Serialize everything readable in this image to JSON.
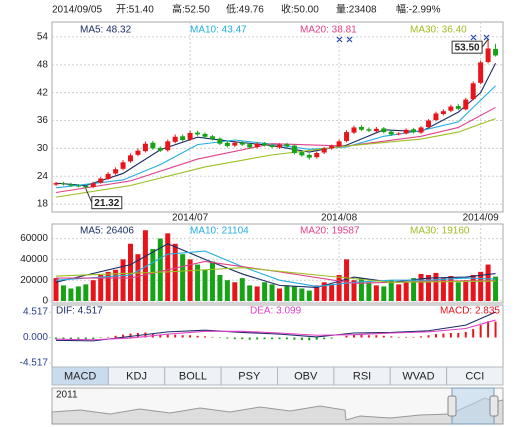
{
  "header": {
    "date": "2014/09/05",
    "open": "开:51.40",
    "high": "高:52.50",
    "low": "低:49.76",
    "close": "收:50.00",
    "volume": "量:23408",
    "change": "幅:-2.99%"
  },
  "chart_data": [
    {
      "type": "candlestick",
      "categories": [
        null,
        null,
        null,
        null,
        null,
        null,
        null,
        null,
        null,
        null,
        null,
        null,
        null,
        null,
        null,
        null,
        null,
        null,
        null,
        null,
        null,
        null,
        null,
        null,
        null,
        null,
        null,
        null,
        null,
        null,
        null,
        null,
        null,
        null,
        null,
        null,
        null,
        null,
        null,
        null,
        null,
        null,
        null,
        null,
        null,
        null,
        null,
        null,
        null,
        null,
        null,
        null,
        null,
        null,
        null,
        null,
        null,
        null,
        null,
        null
      ],
      "open": [
        22.2,
        22.5,
        22.3,
        22.0,
        21.9,
        21.7,
        22.6,
        23.4,
        24.6,
        25.6,
        27.2,
        28.6,
        29.4,
        31.2,
        30.1,
        29.6,
        31.4,
        32.6,
        31.9,
        33.4,
        33.1,
        32.6,
        32.1,
        31.2,
        30.6,
        31.3,
        30.9,
        30.3,
        31.1,
        30.7,
        30.2,
        30.9,
        30.6,
        29.2,
        28.6,
        28.1,
        29.1,
        30.0,
        30.4,
        31.6,
        33.4,
        34.6,
        34.1,
        33.7,
        34.3,
        33.6,
        33.1,
        33.2,
        34.1,
        33.4,
        34.6,
        36.1,
        37.4,
        38.1,
        39.1,
        38.4,
        40.6,
        44.1,
        48.6,
        51.4
      ],
      "high": [
        22.8,
        22.8,
        22.6,
        22.3,
        22.1,
        22.8,
        23.8,
        24.9,
        25.9,
        27.5,
        28.9,
        30,
        31.5,
        31.6,
        30.4,
        31.9,
        33,
        33,
        33.8,
        33.8,
        33.4,
        32.9,
        32.4,
        31.6,
        31.6,
        31.6,
        31.2,
        31.3,
        31.4,
        31,
        31.1,
        31.2,
        30.8,
        29.5,
        28.9,
        29.3,
        30.3,
        30.8,
        31.9,
        33.9,
        34.9,
        35,
        34.5,
        34.6,
        34.6,
        33.9,
        33.5,
        34.3,
        34.4,
        34.8,
        36.3,
        37.9,
        38.4,
        39.4,
        39.5,
        40.9,
        44.4,
        48.9,
        53.5,
        52.5
      ],
      "low": [
        21.9,
        22.0,
        21.7,
        21.6,
        21.32,
        21.5,
        22.4,
        23.2,
        24.3,
        25.3,
        26.9,
        28.3,
        29.1,
        29.7,
        29.2,
        29.3,
        31.1,
        31.5,
        31.6,
        32.7,
        32.2,
        31.7,
        30.7,
        30.2,
        30.3,
        30.5,
        29.9,
        30,
        30.4,
        30,
        29.9,
        30.2,
        28.7,
        28.2,
        27.6,
        27.8,
        28.8,
        29.7,
        30.2,
        31.3,
        33.1,
        33.7,
        33.5,
        33.4,
        33.2,
        32.7,
        32.8,
        33,
        33.2,
        33.1,
        34.3,
        35.8,
        37.1,
        37.8,
        38.2,
        38.2,
        40.3,
        43.8,
        48.3,
        49.76
      ],
      "close": [
        22.5,
        22.3,
        22.0,
        21.8,
        21.6,
        22.5,
        23.5,
        24.5,
        25.5,
        27,
        28.5,
        29.5,
        31,
        30,
        29.5,
        31.5,
        32.5,
        31.8,
        33.3,
        33,
        32.5,
        32,
        31,
        30.5,
        31.2,
        30.8,
        30.2,
        31,
        30.6,
        30.3,
        30.8,
        30.5,
        29,
        28.5,
        28,
        29,
        30,
        30.5,
        31.5,
        33.5,
        34.5,
        34,
        33.8,
        34.2,
        33.5,
        33,
        33.2,
        34,
        33.5,
        34.5,
        36,
        37.5,
        38,
        39,
        38.5,
        40.5,
        44,
        48.5,
        51.5,
        50
      ],
      "up_color": "#e8141b",
      "down_color": "#16a316",
      "series": [
        {
          "name": "MA5: 48.32",
          "color": "#1c2d66",
          "x": [
            0,
            4,
            9,
            14,
            19,
            24,
            29,
            34,
            39,
            44,
            49,
            54,
            57,
            59
          ],
          "values": [
            22.5,
            22,
            24.6,
            29.7,
            32.4,
            31.4,
            30.6,
            29.2,
            30.7,
            34,
            33.6,
            37.8,
            42,
            48.32
          ]
        },
        {
          "name": "MA10: 43.47",
          "color": "#22aee0",
          "x": [
            0,
            9,
            14,
            19,
            24,
            29,
            34,
            39,
            44,
            49,
            54,
            59
          ],
          "values": [
            21.5,
            23.2,
            26.5,
            30.8,
            31.8,
            30.9,
            29.8,
            30.3,
            32.6,
            33.8,
            35.7,
            43.47
          ]
        },
        {
          "name": "MA20: 38.81",
          "color": "#e0408a",
          "x": [
            0,
            10,
            19,
            29,
            39,
            49,
            54,
            59
          ],
          "values": [
            20.5,
            23,
            27.7,
            31,
            30.5,
            32.6,
            34.5,
            38.81
          ]
        },
        {
          "name": "MA30: 36.40",
          "color": "#9cbf20",
          "x": [
            0,
            10,
            20,
            29,
            39,
            49,
            54,
            59
          ],
          "values": [
            19.5,
            22,
            26,
            28.6,
            30.5,
            32,
            33.5,
            36.4
          ]
        }
      ],
      "annotations": [
        {
          "text": "53.50",
          "x": 58,
          "y": 53.5
        },
        {
          "text": "21.32",
          "x": 4,
          "y": 21.32
        }
      ],
      "ylim": [
        16.3,
        57.2
      ],
      "yticks": [
        18,
        24,
        30,
        36,
        42,
        48,
        54
      ],
      "xticks": [
        {
          "value": 18,
          "label": "2014/07"
        },
        {
          "value": 38,
          "label": "2014/08"
        },
        {
          "value": 57,
          "label": "2014/09"
        }
      ],
      "grid": true
    },
    {
      "type": "volume",
      "values": [
        22000,
        15000,
        12000,
        14000,
        16000,
        20000,
        25000,
        28000,
        30000,
        40000,
        55000,
        45000,
        68000,
        50000,
        60000,
        65000,
        55000,
        45000,
        40000,
        35000,
        30000,
        38000,
        25000,
        20000,
        18000,
        22000,
        15000,
        14000,
        18000,
        16000,
        12000,
        15000,
        14000,
        12000,
        10000,
        15000,
        18000,
        16000,
        25000,
        40000,
        20000,
        22000,
        18000,
        15000,
        14000,
        20000,
        16000,
        18000,
        22000,
        26000,
        25000,
        27000,
        22000,
        24000,
        18000,
        20000,
        25000,
        28000,
        35000,
        23408
      ],
      "series": [
        {
          "name": "MA5: 26406",
          "color": "#1c2d66",
          "x": [
            0,
            10,
            15,
            20,
            25,
            30,
            35,
            40,
            45,
            50,
            55,
            59
          ],
          "values": [
            18000,
            35000,
            55000,
            40000,
            26000,
            15000,
            13000,
            23000,
            18000,
            22000,
            23000,
            26406
          ]
        },
        {
          "name": "MA10: 21104",
          "color": "#22aee0",
          "x": [
            0,
            10,
            15,
            20,
            25,
            30,
            35,
            40,
            45,
            50,
            55,
            59
          ],
          "values": [
            20000,
            25000,
            45000,
            48000,
            33000,
            20000,
            14000,
            18000,
            20000,
            20000,
            22000,
            21104
          ]
        },
        {
          "name": "MA20: 19587",
          "color": "#e0408a",
          "x": [
            0,
            10,
            20,
            30,
            40,
            50,
            59
          ],
          "values": [
            22000,
            22000,
            38000,
            28000,
            17000,
            19000,
            19587
          ]
        },
        {
          "name": "MA30: 19160",
          "color": "#9cbf20",
          "x": [
            0,
            15,
            25,
            35,
            45,
            59
          ],
          "values": [
            24000,
            28000,
            32000,
            25000,
            18000,
            19160
          ]
        }
      ],
      "ylim": [
        0,
        74000
      ],
      "yticks": [
        0,
        20000,
        40000,
        60000
      ],
      "grid": true
    },
    {
      "type": "macd",
      "name": "MACD: 2.835",
      "values": [
        -0.3,
        -0.3,
        -0.35,
        -0.4,
        -0.4,
        -0.3,
        -0.1,
        0.1,
        0.3,
        0.5,
        0.7,
        0.8,
        0.9,
        0.7,
        0.5,
        0.5,
        0.5,
        0.4,
        0.4,
        0.3,
        0.2,
        0.1,
        -0.1,
        -0.2,
        -0.3,
        -0.3,
        -0.4,
        -0.35,
        -0.3,
        -0.3,
        -0.3,
        -0.3,
        -0.4,
        -0.45,
        -0.5,
        -0.4,
        -0.3,
        -0.2,
        0,
        0.3,
        0.5,
        0.5,
        0.4,
        0.4,
        0.3,
        0.2,
        0.1,
        0.1,
        0.1,
        0.2,
        0.4,
        0.6,
        0.7,
        0.8,
        0.8,
        1.0,
        1.5,
        2.2,
        2.9,
        2.835
      ],
      "up_color": "#e8141b",
      "down_color": "#16a316",
      "series": [
        {
          "name": "DIF: 4.517",
          "color": "#1c2d66",
          "x": [
            0,
            5,
            10,
            15,
            20,
            25,
            30,
            35,
            40,
            45,
            50,
            55,
            59
          ],
          "values": [
            -0.5,
            -0.6,
            0.2,
            1.0,
            1.3,
            0.9,
            0.6,
            0.1,
            0.8,
            0.9,
            1.2,
            2.2,
            4.517
          ]
        },
        {
          "name": "DEA: 3.099",
          "color": "#e040c8",
          "x": [
            0,
            5,
            10,
            15,
            20,
            25,
            30,
            35,
            40,
            45,
            50,
            55,
            59
          ],
          "values": [
            -0.3,
            -0.4,
            -0.1,
            0.6,
            1.1,
            1.1,
            0.8,
            0.4,
            0.5,
            0.8,
            1.0,
            1.6,
            3.099
          ]
        }
      ],
      "ylim": [
        -5.78,
        5.78
      ],
      "yticks": [
        4.517,
        {
          "value": 0,
          "label": "0.000"
        },
        -4.517
      ]
    }
  ],
  "tabs": [
    "MACD",
    "KDJ",
    "BOLL",
    "PSY",
    "OBV",
    "RSI",
    "WVAD",
    "CCI"
  ],
  "navigator": {
    "label": "2011"
  }
}
